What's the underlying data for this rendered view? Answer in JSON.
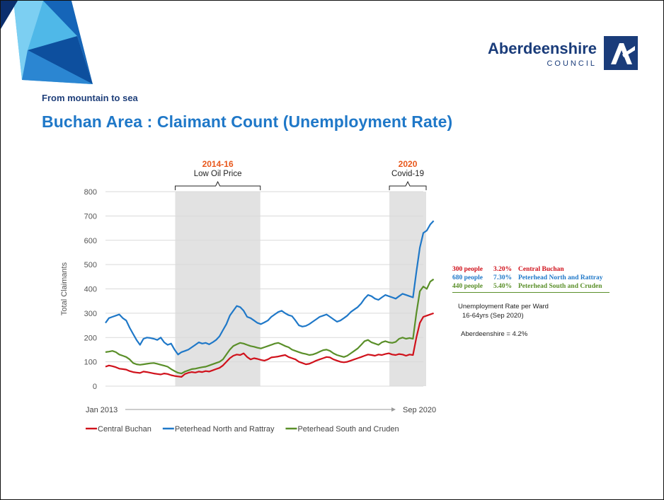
{
  "header": {
    "tagline": "From mountain to sea",
    "title": "Buchan Area : Claimant Count (Unemployment Rate)",
    "logo_main": "Aberdeenshire",
    "logo_sub": "COUNCIL"
  },
  "colors": {
    "central": "#d0111b",
    "north": "#1f78c8",
    "south": "#5a8f29",
    "title": "#1f78c8",
    "annotation_year": "#e8571b",
    "shade": "#e2e2e2"
  },
  "annotations": [
    {
      "year": "2014-16",
      "label": "Low Oil Price"
    },
    {
      "year": "2020",
      "label": "Covid-19"
    }
  ],
  "wards": [
    {
      "people": "300 people",
      "rate": "3.20%",
      "name": "Central Buchan",
      "color": "#d0111b"
    },
    {
      "people": "680 people",
      "rate": "7.30%",
      "name": "Peterhead North and Rattray",
      "color": "#1f78c8"
    },
    {
      "people": "440 people",
      "rate": "5.40%",
      "name": "Peterhead South and Cruden",
      "color": "#5a8f29"
    }
  ],
  "notes": {
    "rate_title": "Unemployment Rate per Ward",
    "rate_sub": "16-64yrs (Sep 2020)",
    "aberdeenshire": "Aberdeenshire = 4.2%"
  },
  "chart_data": {
    "type": "line",
    "ylabel": "Total Claimants",
    "ylim": [
      0,
      800
    ],
    "y_ticks": [
      0,
      100,
      200,
      300,
      400,
      500,
      600,
      700,
      800
    ],
    "x_start_label": "Jan 2013",
    "x_end_label": "Sep 2020",
    "x_start": "2013-01",
    "x_end": "2020-09",
    "frequency": "monthly",
    "shaded_periods": [
      {
        "from": "2014-10",
        "to": "2016-09"
      },
      {
        "from": "2019-12",
        "to": "2020-09"
      }
    ],
    "legend_position": "bottom",
    "series": [
      {
        "name": "Central Buchan",
        "color": "#d0111b",
        "values": [
          80,
          85,
          82,
          78,
          72,
          70,
          68,
          62,
          58,
          56,
          54,
          60,
          58,
          55,
          52,
          50,
          48,
          52,
          50,
          45,
          42,
          40,
          38,
          50,
          55,
          58,
          56,
          60,
          58,
          62,
          60,
          65,
          70,
          75,
          85,
          100,
          115,
          125,
          130,
          128,
          135,
          120,
          110,
          115,
          112,
          108,
          105,
          110,
          118,
          120,
          122,
          125,
          128,
          120,
          115,
          110,
          100,
          95,
          90,
          92,
          98,
          105,
          110,
          115,
          120,
          118,
          110,
          105,
          100,
          98,
          100,
          105,
          110,
          115,
          120,
          125,
          130,
          128,
          125,
          130,
          128,
          132,
          135,
          130,
          128,
          132,
          130,
          125,
          130,
          128,
          200,
          260,
          285,
          290,
          295,
          300
        ]
      },
      {
        "name": "Peterhead North and Rattray",
        "color": "#1f78c8",
        "values": [
          260,
          280,
          285,
          290,
          295,
          280,
          270,
          240,
          215,
          190,
          170,
          195,
          200,
          198,
          195,
          190,
          200,
          180,
          170,
          175,
          150,
          130,
          140,
          145,
          150,
          160,
          170,
          180,
          175,
          178,
          172,
          180,
          190,
          205,
          230,
          255,
          290,
          310,
          330,
          325,
          310,
          285,
          280,
          270,
          260,
          255,
          262,
          270,
          285,
          295,
          305,
          310,
          300,
          292,
          288,
          270,
          250,
          245,
          248,
          255,
          265,
          275,
          285,
          290,
          295,
          285,
          275,
          265,
          270,
          280,
          290,
          305,
          315,
          325,
          340,
          360,
          375,
          370,
          360,
          355,
          365,
          375,
          370,
          365,
          360,
          370,
          380,
          375,
          370,
          365,
          470,
          570,
          630,
          640,
          665,
          680
        ]
      },
      {
        "name": "Peterhead South and Cruden",
        "color": "#5a8f29",
        "values": [
          140,
          142,
          145,
          140,
          130,
          125,
          120,
          110,
          95,
          90,
          88,
          90,
          92,
          94,
          95,
          92,
          88,
          84,
          80,
          70,
          62,
          55,
          52,
          60,
          65,
          70,
          72,
          75,
          78,
          80,
          85,
          90,
          95,
          100,
          110,
          130,
          150,
          165,
          172,
          178,
          175,
          170,
          165,
          162,
          158,
          155,
          160,
          165,
          170,
          175,
          178,
          172,
          165,
          160,
          150,
          145,
          140,
          135,
          132,
          128,
          130,
          135,
          142,
          148,
          150,
          145,
          135,
          128,
          124,
          120,
          125,
          135,
          145,
          155,
          170,
          185,
          190,
          180,
          175,
          170,
          180,
          185,
          180,
          178,
          182,
          195,
          200,
          195,
          198,
          195,
          300,
          390,
          410,
          400,
          430,
          440
        ]
      }
    ]
  }
}
